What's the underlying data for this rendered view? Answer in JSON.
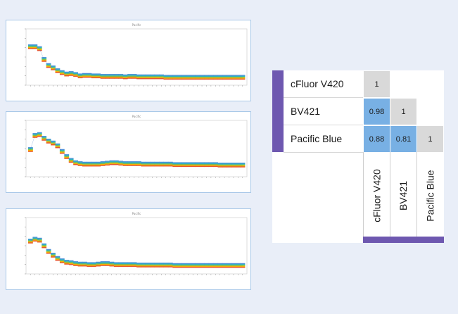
{
  "colors": {
    "accent_purple": "#6e58b0",
    "diagonal_cell": "#d9d9d9",
    "high_similarity_cell": "#78b0e4",
    "panel_border": "#a9c8e8",
    "spectrum_series": [
      "#4a8fd8",
      "#2bb3c0",
      "#8cc63f",
      "#f5b400",
      "#e8572a"
    ]
  },
  "chart_data": [
    {
      "type": "line",
      "title": "Pacific",
      "panel_index": 1,
      "y_values": [
        0.82,
        0.82,
        0.78,
        0.55,
        0.42,
        0.37,
        0.31,
        0.27,
        0.24,
        0.25,
        0.23,
        0.2,
        0.21,
        0.21,
        0.2,
        0.2,
        0.19,
        0.19,
        0.19,
        0.19,
        0.19,
        0.18,
        0.19,
        0.19,
        0.18,
        0.18,
        0.18,
        0.18,
        0.18,
        0.18,
        0.17,
        0.17,
        0.17,
        0.17,
        0.17,
        0.17,
        0.17,
        0.17,
        0.17,
        0.17,
        0.17,
        0.17,
        0.17,
        0.17,
        0.17,
        0.17,
        0.17,
        0.17
      ],
      "ylim": [
        0,
        1.2
      ]
    },
    {
      "type": "line",
      "title": "Pacific",
      "panel_index": 2,
      "y_values": [
        0.58,
        0.88,
        0.9,
        0.82,
        0.76,
        0.72,
        0.66,
        0.54,
        0.43,
        0.35,
        0.3,
        0.28,
        0.27,
        0.27,
        0.27,
        0.27,
        0.28,
        0.29,
        0.3,
        0.3,
        0.29,
        0.28,
        0.28,
        0.28,
        0.28,
        0.27,
        0.27,
        0.27,
        0.27,
        0.27,
        0.27,
        0.27,
        0.26,
        0.26,
        0.26,
        0.26,
        0.26,
        0.26,
        0.26,
        0.26,
        0.26,
        0.26,
        0.25,
        0.25,
        0.25,
        0.25,
        0.25,
        0.25
      ],
      "ylim": [
        0,
        1.2
      ]
    },
    {
      "type": "line",
      "title": "Pacific",
      "panel_index": 3,
      "y_values": [
        0.7,
        0.74,
        0.72,
        0.6,
        0.48,
        0.4,
        0.33,
        0.28,
        0.25,
        0.24,
        0.22,
        0.21,
        0.21,
        0.2,
        0.2,
        0.21,
        0.22,
        0.22,
        0.21,
        0.2,
        0.2,
        0.2,
        0.2,
        0.2,
        0.19,
        0.19,
        0.19,
        0.19,
        0.19,
        0.19,
        0.19,
        0.19,
        0.18,
        0.18,
        0.18,
        0.18,
        0.18,
        0.18,
        0.18,
        0.18,
        0.18,
        0.18,
        0.18,
        0.18,
        0.18,
        0.18,
        0.18,
        0.18
      ],
      "ylim": [
        0,
        1.2
      ]
    },
    {
      "type": "heatmap",
      "rows": [
        "cFluor V420",
        "BV421",
        "Pacific Blue"
      ],
      "columns": [
        "cFluor V420",
        "BV421",
        "Pacific Blue"
      ],
      "cells": [
        {
          "row": 0,
          "col": 0,
          "value": "1",
          "highlight": false
        },
        {
          "row": 1,
          "col": 0,
          "value": "0.98",
          "highlight": true
        },
        {
          "row": 1,
          "col": 1,
          "value": "1",
          "highlight": false
        },
        {
          "row": 2,
          "col": 0,
          "value": "0.88",
          "highlight": true
        },
        {
          "row": 2,
          "col": 1,
          "value": "0.81",
          "highlight": true
        },
        {
          "row": 2,
          "col": 2,
          "value": "1",
          "highlight": false
        }
      ]
    }
  ],
  "matrix": {
    "row_labels": [
      "cFluor V420",
      "BV421",
      "Pacific Blue"
    ],
    "col_labels": [
      "cFluor V420",
      "BV421",
      "Pacific Blue"
    ]
  }
}
